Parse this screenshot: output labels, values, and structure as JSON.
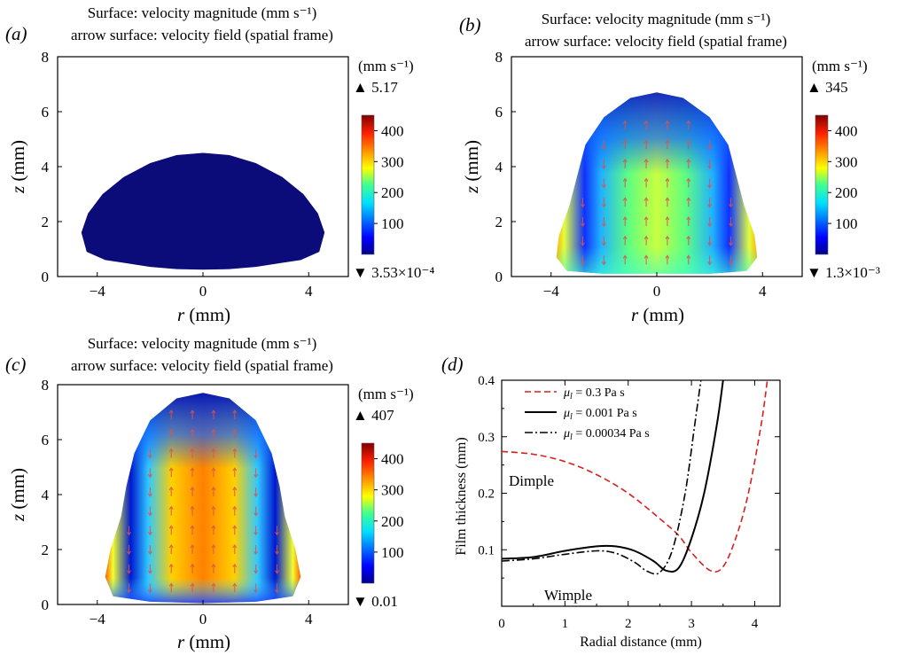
{
  "colors": {
    "cold": "#0b0b7a",
    "dashed_red": "#d42020",
    "solid_black": "#000000",
    "arrow": "#e0504a"
  },
  "panels": [
    {
      "letter": "(a)",
      "title_line1": "Surface: velocity magnitude (mm s⁻¹)",
      "title_line2": "arrow surface: velocity field (spatial frame)",
      "colorbar_unit": "(mm s⁻¹)",
      "max_value": "▲ 5.17",
      "min_value": "▼ 3.53×10⁻⁴",
      "colorbar_ticks": [
        "400",
        "300",
        "200",
        "100"
      ],
      "x_ticks": [
        "−4",
        "0",
        "4"
      ],
      "y_ticks": [
        "0",
        "2",
        "4",
        "6",
        "8"
      ],
      "xlabel_italic": "r",
      "xlabel_unit": " (mm)",
      "ylabel_italic": "z",
      "ylabel_unit": " (mm)"
    },
    {
      "letter": "(b)",
      "title_line1": "Surface: velocity magnitude (mm s⁻¹)",
      "title_line2": "arrow surface: velocity field (spatial frame)",
      "colorbar_unit": "(mm s⁻¹)",
      "max_value": "▲ 345",
      "min_value": "▼ 1.3×10⁻³",
      "colorbar_ticks": [
        "400",
        "300",
        "200",
        "100"
      ],
      "x_ticks": [
        "−4",
        "0",
        "4"
      ],
      "y_ticks": [
        "0",
        "2",
        "4",
        "6",
        "8"
      ],
      "xlabel_italic": "r",
      "xlabel_unit": " (mm)",
      "ylabel_italic": "z",
      "ylabel_unit": " (mm)"
    },
    {
      "letter": "(c)",
      "title_line1": "Surface: velocity magnitude (mm s⁻¹)",
      "title_line2": "arrow surface: velocity field (spatial frame)",
      "colorbar_unit": "(mm s⁻¹)",
      "max_value": "▲ 407",
      "min_value": "▼ 0.01",
      "colorbar_ticks": [
        "400",
        "300",
        "200",
        "100"
      ],
      "x_ticks": [
        "−4",
        "0",
        "4"
      ],
      "y_ticks": [
        "0",
        "2",
        "4",
        "6",
        "8"
      ],
      "xlabel_italic": "r",
      "xlabel_unit": " (mm)",
      "ylabel_italic": "z",
      "ylabel_unit": " (mm)"
    }
  ],
  "panel_d": {
    "letter": "(d)",
    "xlabel": "Radial distance (mm)",
    "ylabel": "Film thickness (mm)",
    "x_ticks": [
      "0",
      "1",
      "2",
      "3",
      "4"
    ],
    "y_ticks": [
      "0.1",
      "0.2",
      "0.3",
      "0.4"
    ],
    "legend": [
      {
        "prefix": "μ",
        "sub": "l",
        "value": " = 0.3 Pa s"
      },
      {
        "prefix": "μ",
        "sub": "l",
        "value": " = 0.001 Pa s"
      },
      {
        "prefix": "μ",
        "sub": "l",
        "value": " = 0.00034 Pa s"
      }
    ],
    "annotation_dimple": "Dimple",
    "annotation_wimple": "Wimple"
  },
  "chart_data": [
    {
      "type": "heatmap",
      "panel": "(a)",
      "x_range": [
        -5.5,
        5.5
      ],
      "y_range": [
        0,
        8
      ],
      "colorbar_range": [
        0,
        450
      ],
      "max_velocity": 5.17,
      "min_velocity": 0.000353,
      "droplet_outline": [
        [
          0,
          4.5
        ],
        [
          1,
          4.42
        ],
        [
          2,
          4.13
        ],
        [
          3,
          3.62
        ],
        [
          3.8,
          3.0
        ],
        [
          4.35,
          2.3
        ],
        [
          4.6,
          1.6
        ],
        [
          4.4,
          0.9
        ],
        [
          3.7,
          0.6
        ],
        [
          3,
          0.5
        ],
        [
          2,
          0.35
        ],
        [
          1,
          0.27
        ],
        [
          0,
          0.25
        ]
      ]
    },
    {
      "type": "heatmap",
      "panel": "(b)",
      "x_range": [
        -5.5,
        5.5
      ],
      "y_range": [
        0,
        8
      ],
      "colorbar_range": [
        0,
        450
      ],
      "max_velocity": 345,
      "min_velocity": 0.0013,
      "droplet_outline": [
        [
          0,
          6.7
        ],
        [
          1,
          6.5
        ],
        [
          2,
          5.8
        ],
        [
          2.7,
          4.8
        ],
        [
          3,
          3.7
        ],
        [
          3.3,
          2.6
        ],
        [
          3.7,
          1.5
        ],
        [
          3.8,
          0.7
        ],
        [
          3.4,
          0.2
        ],
        [
          2,
          0.1
        ],
        [
          0,
          0.1
        ]
      ]
    },
    {
      "type": "heatmap",
      "panel": "(c)",
      "x_range": [
        -5.5,
        5.5
      ],
      "y_range": [
        0,
        8
      ],
      "colorbar_range": [
        0,
        450
      ],
      "max_velocity": 407,
      "min_velocity": 0.01,
      "droplet_outline": [
        [
          0,
          7.7
        ],
        [
          1,
          7.5
        ],
        [
          2,
          6.7
        ],
        [
          2.6,
          5.5
        ],
        [
          2.9,
          4.3
        ],
        [
          3.1,
          3.2
        ],
        [
          3.5,
          2
        ],
        [
          3.7,
          1.0
        ],
        [
          3.4,
          0.3
        ],
        [
          2,
          0.1
        ],
        [
          0,
          0.05
        ]
      ]
    },
    {
      "type": "line",
      "panel": "(d)",
      "xlabel": "Radial distance (mm)",
      "ylabel": "Film thickness (mm)",
      "xlim": [
        0,
        4.4
      ],
      "ylim": [
        0,
        0.4
      ],
      "series": [
        {
          "name": "μl = 0.3 Pa s",
          "style": "dashed",
          "color": "#d42020",
          "x": [
            0,
            0.5,
            1.0,
            1.5,
            2.0,
            2.5,
            2.8,
            3.0,
            3.3,
            3.5,
            3.7,
            3.9,
            4.1,
            4.2
          ],
          "y": [
            0.274,
            0.269,
            0.256,
            0.233,
            0.2,
            0.155,
            0.125,
            0.095,
            0.063,
            0.07,
            0.12,
            0.2,
            0.32,
            0.4
          ]
        },
        {
          "name": "μl = 0.001 Pa s",
          "style": "solid",
          "color": "#000000",
          "x": [
            0,
            0.5,
            1.0,
            1.5,
            1.8,
            2.1,
            2.4,
            2.6,
            2.8,
            3.0,
            3.2,
            3.4,
            3.5
          ],
          "y": [
            0.084,
            0.087,
            0.098,
            0.106,
            0.106,
            0.098,
            0.08,
            0.063,
            0.068,
            0.12,
            0.2,
            0.32,
            0.4
          ]
        },
        {
          "name": "μl = 0.00034 Pa s",
          "style": "dash-dot",
          "color": "#000000",
          "x": [
            0,
            0.5,
            1.0,
            1.5,
            1.8,
            2.1,
            2.3,
            2.5,
            2.7,
            2.9,
            3.05,
            3.15
          ],
          "y": [
            0.08,
            0.084,
            0.092,
            0.098,
            0.094,
            0.078,
            0.062,
            0.06,
            0.1,
            0.2,
            0.32,
            0.4
          ]
        }
      ]
    }
  ]
}
